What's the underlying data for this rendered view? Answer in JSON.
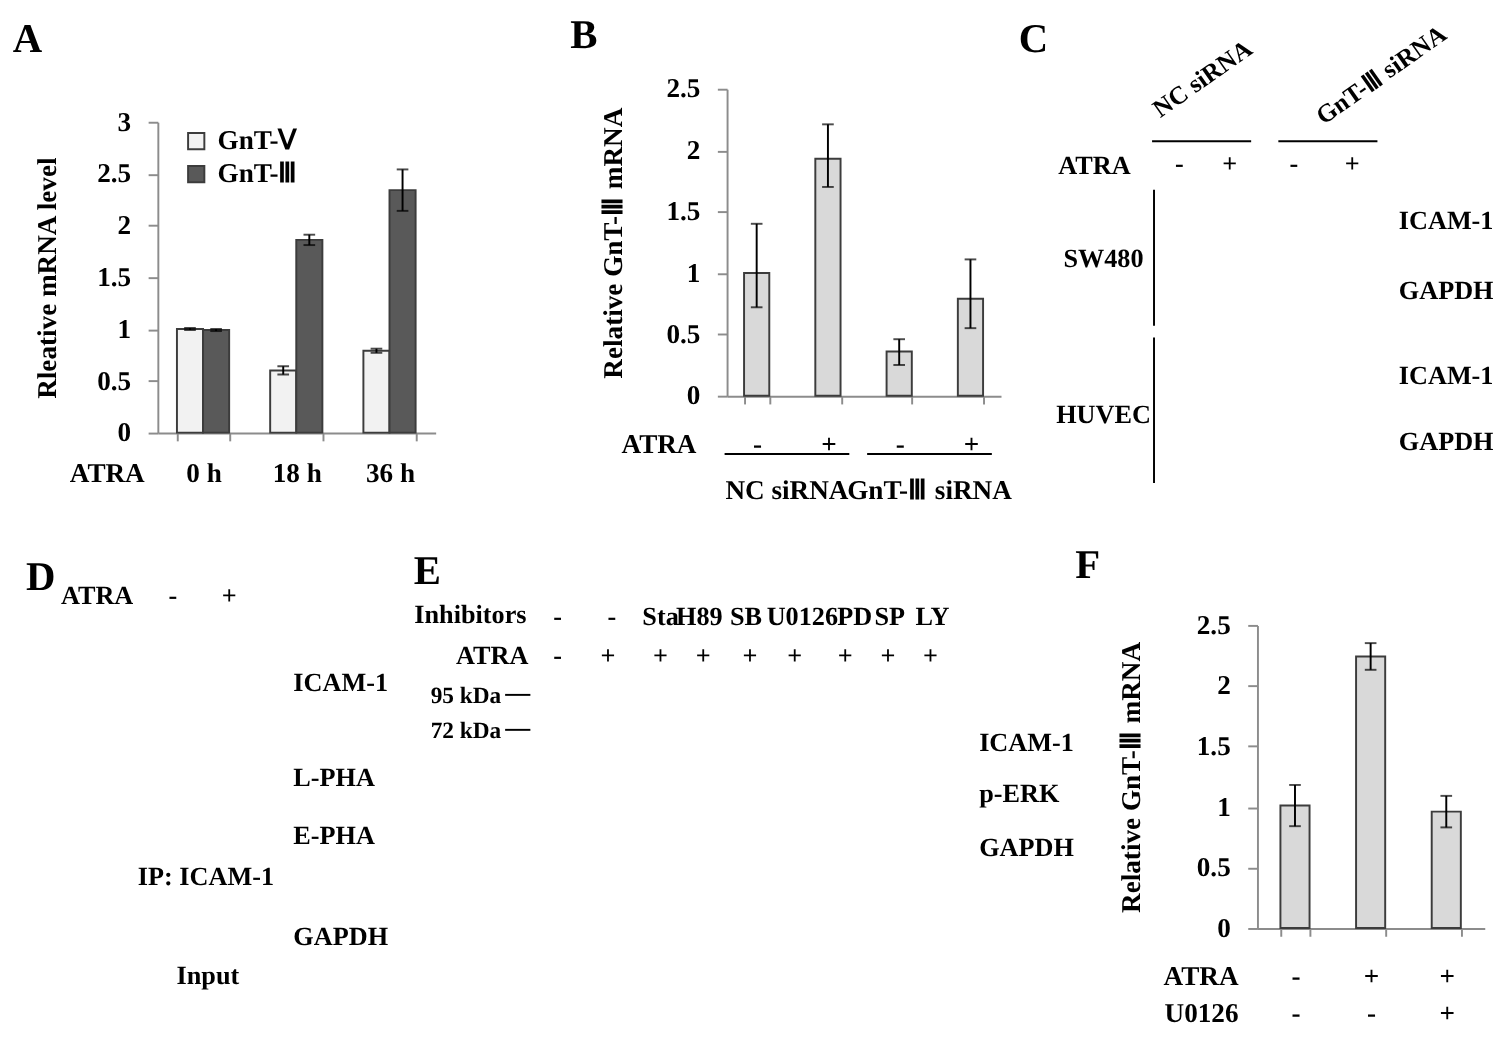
{
  "chart_data": [
    {
      "type": "bar",
      "title": "A",
      "ylabel": "Rleative mRNA level",
      "xlabel": "ATRA",
      "categories": [
        "0 h",
        "18 h",
        "36 h"
      ],
      "series": [
        {
          "name": "GnT-Ⅴ",
          "color": "#f2f2f2",
          "values": [
            1.0,
            0.6,
            0.79
          ],
          "errors": [
            0.01,
            0.04,
            0.02
          ]
        },
        {
          "name": "GnT-Ⅲ",
          "color": "#595959",
          "values": [
            0.99,
            1.86,
            2.34
          ],
          "errors": [
            0.01,
            0.05,
            0.2
          ]
        }
      ],
      "ylim": [
        0,
        3
      ],
      "yticks": [
        0,
        0.5,
        1,
        1.5,
        2,
        2.5,
        3
      ],
      "legend": "top left"
    },
    {
      "type": "bar",
      "title": "B",
      "ylabel": "Relative GnT-Ⅲ mRNA",
      "xlabel": "ATRA",
      "categories": [
        "-",
        "+",
        "-",
        "+"
      ],
      "values": [
        1.0,
        1.93,
        0.36,
        0.79
      ],
      "errors": [
        [
          0.72,
          1.4
        ],
        [
          1.7,
          2.21
        ],
        [
          0.25,
          0.46
        ],
        [
          0.55,
          1.11
        ]
      ],
      "color": "#d9d9d9",
      "ylim": [
        0,
        2.5
      ],
      "yticks": [
        0,
        0.5,
        1,
        1.5,
        2,
        2.5
      ],
      "annotations": [
        "NC siRNA",
        "GnT-Ⅲ siRNA"
      ]
    },
    {
      "type": "other",
      "title": "C",
      "annotations": [
        "NC siRNA",
        "GnT-Ⅲ siRNA",
        "ATRA",
        "-",
        "+",
        "-",
        "+",
        "ICAM-1",
        "GAPDH",
        "ICAM-1",
        "GAPDH",
        "SW480",
        "HUVEC"
      ]
    },
    {
      "type": "other",
      "title": "D",
      "annotations": [
        "ATRA",
        "-",
        "+",
        "ICAM-1",
        "L-PHA",
        "E-PHA",
        "IP: ICAM-1",
        "GAPDH",
        "Input"
      ]
    },
    {
      "type": "other",
      "title": "E",
      "annotations": [
        "Inhibitors",
        "-",
        "-",
        "Sta",
        "H89",
        "SB",
        "U0126",
        "PD",
        "SP",
        "LY",
        "ATRA",
        "-",
        "+",
        "+",
        "+",
        "+",
        "+",
        "+",
        "+",
        "+",
        "95 kDa",
        "72 kDa",
        "ICAM-1",
        "p-ERK",
        "GAPDH"
      ]
    },
    {
      "type": "bar",
      "title": "F",
      "ylabel": "Relative GnT-Ⅲ mRNA",
      "xlabel": "ATRA\nU0126",
      "categories": [
        "-\n-",
        "+\n-",
        "+\n+"
      ],
      "values": [
        1.01,
        2.24,
        0.96
      ],
      "errors": [
        0.17,
        0.11,
        0.13
      ],
      "color": "#d9d9d9",
      "ylim": [
        0,
        2.5
      ],
      "yticks": [
        0,
        0.5,
        1,
        1.5,
        2,
        2.5
      ]
    }
  ]
}
